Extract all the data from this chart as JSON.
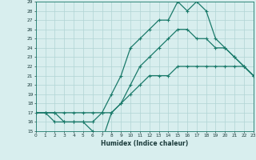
{
  "xlabel": "Humidex (Indice chaleur)",
  "bg_color": "#d8eeee",
  "grid_color": "#b0d4d4",
  "line_color": "#1a7a6a",
  "x_min": 0,
  "x_max": 23,
  "y_min": 15,
  "y_max": 29,
  "hours": [
    0,
    1,
    2,
    3,
    4,
    5,
    6,
    7,
    8,
    9,
    10,
    11,
    12,
    13,
    14,
    15,
    16,
    17,
    18,
    19,
    20,
    21,
    22,
    23
  ],
  "series1": [
    17,
    17,
    17,
    17,
    17,
    17,
    17,
    17,
    17,
    18,
    19,
    20,
    21,
    21,
    21,
    22,
    22,
    22,
    22,
    22,
    22,
    22,
    22,
    21
  ],
  "series2": [
    17,
    17,
    17,
    16,
    16,
    16,
    15,
    14,
    17,
    18,
    20,
    22,
    23,
    24,
    25,
    26,
    26,
    25,
    25,
    24,
    24,
    23,
    22,
    21
  ],
  "series3": [
    17,
    17,
    16,
    16,
    16,
    16,
    16,
    17,
    19,
    21,
    24,
    25,
    26,
    27,
    27,
    29,
    28,
    29,
    28,
    25,
    24,
    23,
    22,
    21
  ]
}
